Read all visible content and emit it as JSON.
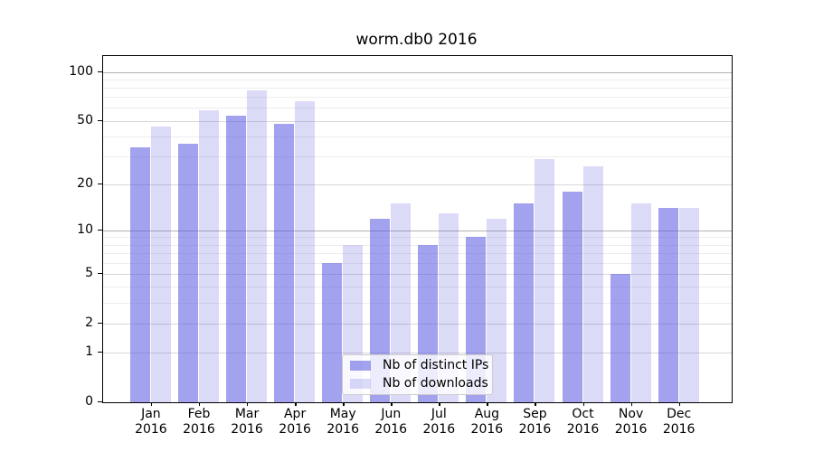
{
  "window": {
    "background": "#ffffff"
  },
  "chart_data": {
    "type": "bar",
    "title": "worm.db0 2016",
    "categories": [
      "Jan 2016",
      "Feb 2016",
      "Mar 2016",
      "Apr 2016",
      "May 2016",
      "Jun 2016",
      "Jul 2016",
      "Aug 2016",
      "Sep 2016",
      "Oct 2016",
      "Nov 2016",
      "Dec 2016"
    ],
    "series": [
      {
        "name": "Nb of distinct IPs",
        "values": [
          34,
          36,
          54,
          48,
          6,
          12,
          8,
          9,
          15,
          18,
          5,
          14
        ]
      },
      {
        "name": "Nb of downloads",
        "values": [
          46,
          58,
          77,
          66,
          8,
          15,
          13,
          12,
          29,
          26,
          15,
          14
        ]
      }
    ],
    "y_scale": "log10(1+y)",
    "y_ticks": [
      0,
      1,
      2,
      5,
      10,
      20,
      50,
      100
    ],
    "y_minor_ticks": [
      3,
      4,
      6,
      7,
      8,
      9,
      30,
      40,
      60,
      70,
      80,
      90
    ],
    "ylim": [
      0,
      126
    ],
    "xlabel": "",
    "ylabel": "",
    "grid": "horizontal",
    "legend_position": "lower center"
  },
  "colors": {
    "bar_distinct_ips": "rgba(85,85,224,0.55)",
    "bar_downloads": "rgba(85,85,224,0.21)",
    "grid_major_strong": "#b2b2b2",
    "grid_major": "#d8d8d8",
    "grid_minor": "#ededed",
    "grid_strong_at": [
      10,
      100
    ],
    "axis_text": "#000000"
  }
}
